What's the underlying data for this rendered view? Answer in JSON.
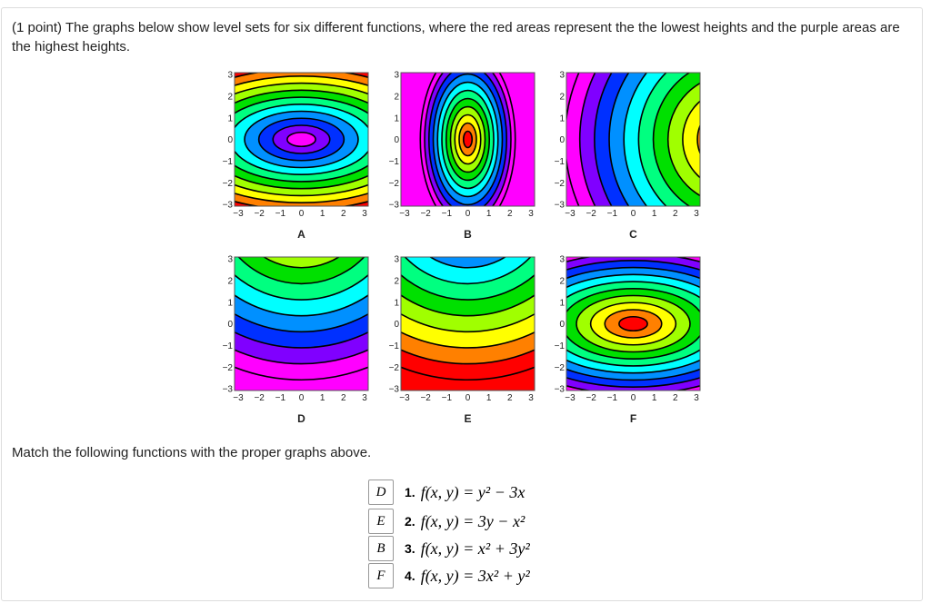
{
  "question": {
    "points": "(1 point)",
    "text": "The graphs below show level sets for six different functions, where the red areas represent the the lowest heights and the purple areas are the highest heights."
  },
  "axis_ticks": [
    "−3",
    "−2",
    "−1",
    "0",
    "1",
    "2",
    "3"
  ],
  "plots": [
    {
      "label": "A"
    },
    {
      "label": "B"
    },
    {
      "label": "C"
    },
    {
      "label": "D"
    },
    {
      "label": "E"
    },
    {
      "label": "F"
    }
  ],
  "instruction": "Match the following functions with the proper graphs above.",
  "items": [
    {
      "answer": "D",
      "number": "1.",
      "formula": "f(x, y) = y² − 3x"
    },
    {
      "answer": "E",
      "number": "2.",
      "formula": "f(x, y) = 3y − x²"
    },
    {
      "answer": "B",
      "number": "3.",
      "formula": "f(x, y) = x² + 3y²"
    },
    {
      "answer": "F",
      "number": "4.",
      "formula": "f(x, y) = 3x² + y²"
    }
  ]
}
